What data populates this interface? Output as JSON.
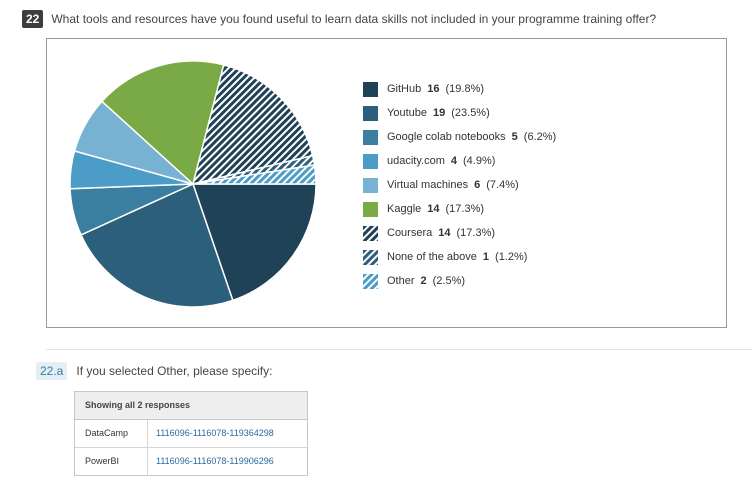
{
  "question": {
    "number": "22",
    "text": "What tools and resources have you found useful to learn data skills not included in your programme training offer?"
  },
  "chart_data": {
    "type": "pie",
    "slices": [
      {
        "label": "GitHub",
        "value": 16,
        "percent": "(19.8%)",
        "color": "#1f4257",
        "pattern": false
      },
      {
        "label": "Youtube",
        "value": 19,
        "percent": "(23.5%)",
        "color": "#2c5f7b",
        "pattern": false
      },
      {
        "label": "Google colab notebooks",
        "value": 5,
        "percent": "(6.2%)",
        "color": "#3a7fa0",
        "pattern": false
      },
      {
        "label": "udacity.com",
        "value": 4,
        "percent": "(4.9%)",
        "color": "#4b9cc6",
        "pattern": false
      },
      {
        "label": "Virtual machines",
        "value": 6,
        "percent": "(7.4%)",
        "color": "#78b2d2",
        "pattern": false
      },
      {
        "label": "Kaggle",
        "value": 14,
        "percent": "(17.3%)",
        "color": "#7aaa45",
        "pattern": false
      },
      {
        "label": "Coursera",
        "value": 14,
        "percent": "(17.3%)",
        "color": "#1f4257",
        "pattern": true
      },
      {
        "label": "None of the above",
        "value": 1,
        "percent": "(1.2%)",
        "color": "#2c5f7b",
        "pattern": true
      },
      {
        "label": "Other",
        "value": 2,
        "percent": "(2.5%)",
        "color": "#4b9cc6",
        "pattern": true
      }
    ]
  },
  "sub_question": {
    "number": "22.a",
    "text": "If you selected Other, please specify:"
  },
  "responses": {
    "header": "Showing all 2 responses",
    "rows": [
      {
        "value": "DataCamp",
        "id": "1116096-1116078-119364298"
      },
      {
        "value": "PowerBI",
        "id": "1116096-1116078-119906296"
      }
    ]
  }
}
